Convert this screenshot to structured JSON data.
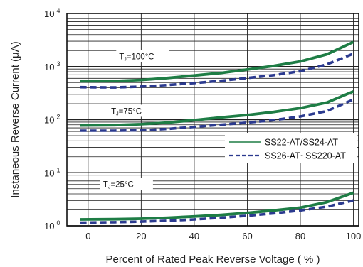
{
  "chart_data": {
    "type": "line",
    "xlabel": "Percent of Rated Peak Reverse Voltage ( % )",
    "ylabel": "Instaneous Reverse Current (μA)",
    "xlim": [
      -8,
      102
    ],
    "xticks": [
      0,
      20,
      40,
      60,
      80,
      100
    ],
    "xtick_labels": [
      "0",
      "20",
      "40",
      "60",
      "80",
      "100"
    ],
    "ylim": [
      1,
      10000
    ],
    "yscale": "log",
    "ytick_labels": [
      {
        "base": "10",
        "exp": "0"
      },
      {
        "base": "10",
        "exp": "1"
      },
      {
        "base": "10",
        "exp": "2"
      },
      {
        "base": "10",
        "exp": "3"
      },
      {
        "base": "10",
        "exp": "4"
      }
    ],
    "grid": true,
    "legend_position": "right",
    "series": [
      {
        "name": "SS22-AT/SS24-AT",
        "color": "#1e7d45",
        "style": "solid",
        "condition": "TJ=100°C",
        "x": [
          -3,
          10,
          20,
          30,
          40,
          50,
          60,
          70,
          80,
          90,
          100
        ],
        "y": [
          530,
          535,
          560,
          610,
          680,
          760,
          880,
          1030,
          1250,
          1700,
          2900
        ]
      },
      {
        "name": "SS26-AT~SS220-AT",
        "color": "#2b3a8f",
        "style": "dashed",
        "condition": "TJ=100°C",
        "x": [
          -3,
          10,
          20,
          30,
          40,
          50,
          60,
          70,
          80,
          90,
          100
        ],
        "y": [
          410,
          405,
          420,
          450,
          490,
          540,
          610,
          690,
          820,
          1100,
          1750
        ]
      },
      {
        "name": "SS22-AT/SS24-AT",
        "color": "#1e7d45",
        "style": "solid",
        "condition": "TJ=75°C",
        "x": [
          -3,
          10,
          20,
          30,
          40,
          50,
          60,
          70,
          80,
          90,
          100
        ],
        "y": [
          78,
          79,
          82,
          88,
          98,
          110,
          122,
          140,
          165,
          210,
          340
        ]
      },
      {
        "name": "SS26-AT~SS220-AT",
        "color": "#2b3a8f",
        "style": "dashed",
        "condition": "TJ=75°C",
        "x": [
          -3,
          10,
          20,
          30,
          40,
          50,
          60,
          70,
          80,
          90,
          100
        ],
        "y": [
          62,
          62,
          63,
          67,
          73,
          80,
          88,
          98,
          115,
          145,
          240
        ]
      },
      {
        "name": "SS22-AT/SS24-AT",
        "color": "#1e7d45",
        "style": "solid",
        "condition": "TJ=25°C",
        "x": [
          -3,
          10,
          20,
          30,
          40,
          50,
          60,
          70,
          80,
          90,
          100
        ],
        "y": [
          1.32,
          1.33,
          1.36,
          1.42,
          1.5,
          1.6,
          1.75,
          1.95,
          2.2,
          2.8,
          4.2
        ]
      },
      {
        "name": "SS26-AT~SS220-AT",
        "color": "#2b3a8f",
        "style": "dashed",
        "condition": "TJ=25°C",
        "x": [
          -3,
          10,
          20,
          30,
          40,
          50,
          60,
          70,
          80,
          90,
          100
        ],
        "y": [
          1.15,
          1.17,
          1.2,
          1.25,
          1.32,
          1.42,
          1.55,
          1.72,
          1.95,
          2.3,
          3.0
        ]
      }
    ],
    "legend": [
      {
        "label": "SS22-AT/SS24-AT",
        "color": "#1e7d45",
        "style": "solid"
      },
      {
        "label": "SS26-AT~SS220-AT",
        "color": "#2b3a8f",
        "style": "dashed"
      }
    ],
    "annotations": [
      {
        "main": "T",
        "sub": "J",
        "rest": "=100°C",
        "x": 13,
        "y": 1550
      },
      {
        "main": "T",
        "sub": "J",
        "rest": "=75°C",
        "x": 10,
        "y": 145
      },
      {
        "main": "T",
        "sub": "J",
        "rest": "=25°C",
        "x": 7,
        "y": 6.1
      }
    ]
  }
}
